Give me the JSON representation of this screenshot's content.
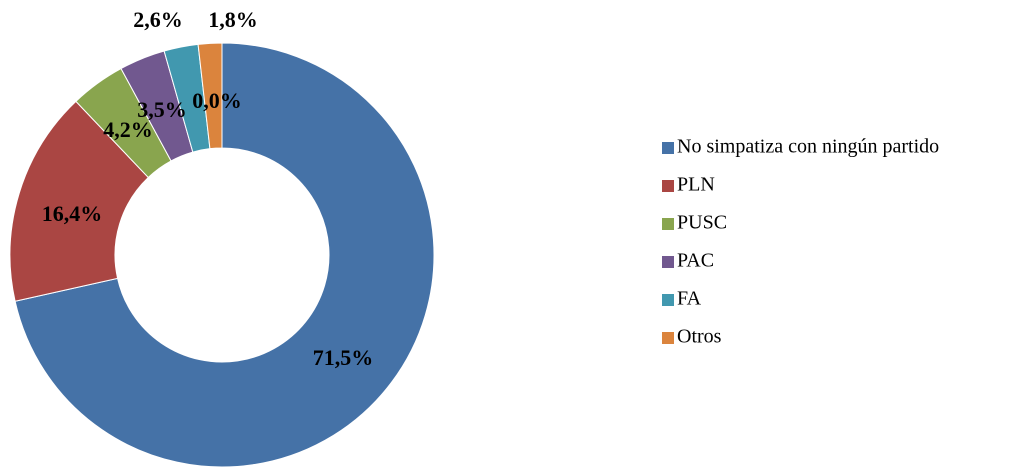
{
  "chart_data": {
    "type": "pie",
    "donut": true,
    "categories": [
      "No simpatiza con ningún partido",
      "PLN",
      "PUSC",
      "PAC",
      "FA",
      "Otros",
      null
    ],
    "values": [
      71.5,
      16.4,
      4.2,
      3.5,
      2.6,
      1.8,
      0
    ],
    "value_labels": [
      "71,5%",
      "16,4%",
      "4,2%",
      "3,5%",
      "2,6%",
      "1,8%",
      "0,0%"
    ],
    "colors": [
      "#4572a7",
      "#aa4643",
      "#89a54e",
      "#71588f",
      "#4198af",
      "#db843d",
      "#7f7f7f"
    ],
    "legend": "right"
  }
}
